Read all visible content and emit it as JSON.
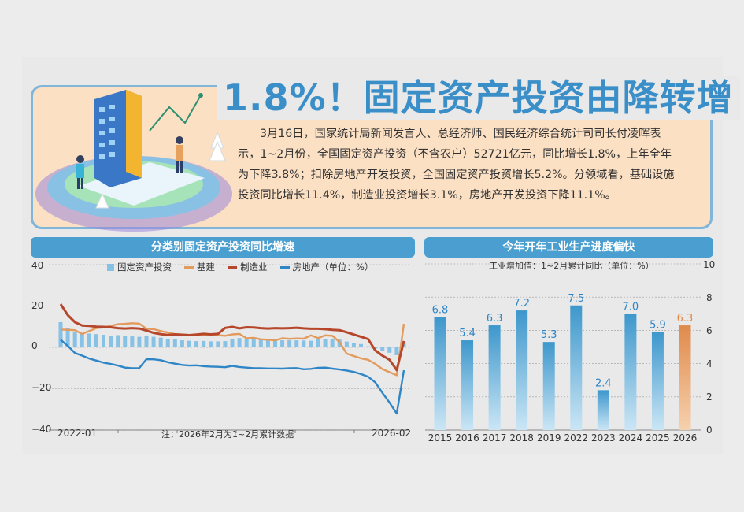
{
  "title": "1.8%！固定资产投资由降转增",
  "intro": "3月16日，国家统计局新闻发言人、总经济师、国民经济综合统计司司长付凌晖表示，1~2月份，全国固定资产投资（不含农户）52721亿元，同比增长1.8%，上年全年为下降3.8%；扣除房地产开发投资，全国固定资产投资增长5.2%。分领域看，基础设施投资同比增长11.4%，制造业投资增长3.1%，房地产开发投资下降11.1%。",
  "left_chart": {
    "header": "分类别固定资产投资同比增速",
    "unit": "（单位：%）",
    "note": "注：2026年2月为1~2月累计数据",
    "y_ticks": [
      "40",
      "20",
      "0",
      "−20",
      "−40"
    ],
    "x_start": "2022-01",
    "x_end": "2026-02"
  },
  "right_chart": {
    "header": "今年开年工业生产进度偏快",
    "subtitle": "工业增加值：1~2月累计同比（单位：%）",
    "y_ticks": [
      "10",
      "8",
      "6",
      "4",
      "2",
      "0"
    ]
  },
  "colors": {
    "fixed_asset_bar": "#86c1e6",
    "infrastructure": "#e39a5d",
    "manufacturing": "#b6472a",
    "real_estate": "#2f86c6",
    "highlight_bar": "#e08a4c"
  },
  "chart_data": [
    {
      "type": "bar+line",
      "title": "分类别固定资产投资同比增速",
      "ylim": [
        -40,
        40
      ],
      "x_range": [
        "2022-01",
        "2026-02"
      ],
      "series": [
        {
          "name": "固定资产投资",
          "kind": "bar",
          "values": [
            12.2,
            9.3,
            7.6,
            7.0,
            6.7,
            6.4,
            6.1,
            5.5,
            5.9,
            5.7,
            5.3,
            5.1,
            5.5,
            5.1,
            4.7,
            4.0,
            3.8,
            3.4,
            3.2,
            3.0,
            3.1,
            2.9,
            2.9,
            3.0,
            4.2,
            4.5,
            4.2,
            4.0,
            3.9,
            3.6,
            3.4,
            3.4,
            3.4,
            3.4,
            3.3,
            3.2,
            4.1,
            4.2,
            4.0,
            3.7,
            2.8,
            2.2,
            1.6,
            0.5,
            -0.5,
            -1.7,
            -2.6,
            -3.8,
            1.8
          ]
        },
        {
          "name": "基建",
          "kind": "line",
          "values": [
            8.6,
            8.5,
            8.3,
            6.5,
            7.9,
            9.3,
            9.6,
            10.4,
            11.2,
            11.4,
            11.7,
            11.5,
            9.0,
            8.8,
            7.9,
            7.2,
            6.4,
            6.2,
            6.0,
            5.9,
            6.2,
            5.9,
            5.9,
            5.6,
            6.3,
            6.5,
            4.4,
            4.6,
            3.9,
            3.7,
            3.4,
            4.4,
            4.1,
            4.3,
            4.2,
            5.8,
            4.5,
            5.8,
            5.6,
            2.6,
            -3.0,
            -4.2,
            -5.3,
            -6.0,
            -8.0,
            -10.5,
            -12.0,
            -13.5,
            11.4
          ]
        },
        {
          "name": "制造业",
          "kind": "line",
          "values": [
            20.9,
            15.6,
            12.2,
            10.6,
            10.4,
            10.0,
            9.9,
            9.7,
            9.3,
            9.1,
            9.3,
            9.1,
            8.1,
            7.0,
            6.4,
            6.0,
            6.3,
            6.1,
            5.9,
            6.2,
            6.5,
            6.3,
            6.5,
            9.4,
            9.9,
            9.2,
            9.7,
            9.6,
            9.3,
            9.1,
            9.3,
            9.2,
            9.3,
            9.5,
            9.2,
            9.0,
            9.0,
            8.8,
            8.5,
            8.3,
            7.3,
            6.2,
            5.1,
            4.0,
            -1.5,
            -4.0,
            -6.0,
            -11.0,
            3.1
          ]
        },
        {
          "name": "房地产",
          "kind": "line",
          "values": [
            3.7,
            0.7,
            -2.7,
            -4.0,
            -5.4,
            -6.4,
            -7.4,
            -8.0,
            -8.8,
            -9.8,
            -10.1,
            -10.0,
            -5.7,
            -5.8,
            -6.2,
            -7.2,
            -7.9,
            -8.5,
            -8.8,
            -8.7,
            -9.1,
            -9.3,
            -9.4,
            -9.6,
            -9.0,
            -9.5,
            -9.8,
            -10.1,
            -10.1,
            -10.2,
            -10.2,
            -10.3,
            -10.1,
            -10.0,
            -10.6,
            -10.4,
            -9.9,
            -9.8,
            -10.3,
            -10.7,
            -11.2,
            -11.9,
            -12.9,
            -14.2,
            -16.9,
            -22.0,
            -26.7,
            -32.0,
            -11.1
          ]
        }
      ]
    },
    {
      "type": "bar",
      "title": "今年开年工业生产进度偏快",
      "ylabel": "工业增加值：1~2月累计同比（单位：%）",
      "ylim": [
        0,
        10
      ],
      "categories": [
        "2015",
        "2016",
        "2017",
        "2018",
        "2019",
        "2022",
        "2023",
        "2024",
        "2025",
        "2026"
      ],
      "values": [
        6.8,
        5.4,
        6.3,
        7.2,
        5.3,
        7.5,
        2.4,
        7.0,
        5.9,
        6.3
      ],
      "data_labels": [
        "6.8",
        "5.4",
        "6.3",
        "7.2",
        "5.3",
        "7.5",
        "2.4",
        "7.0",
        "5.9",
        "6.3"
      ],
      "highlight": "2026"
    }
  ]
}
